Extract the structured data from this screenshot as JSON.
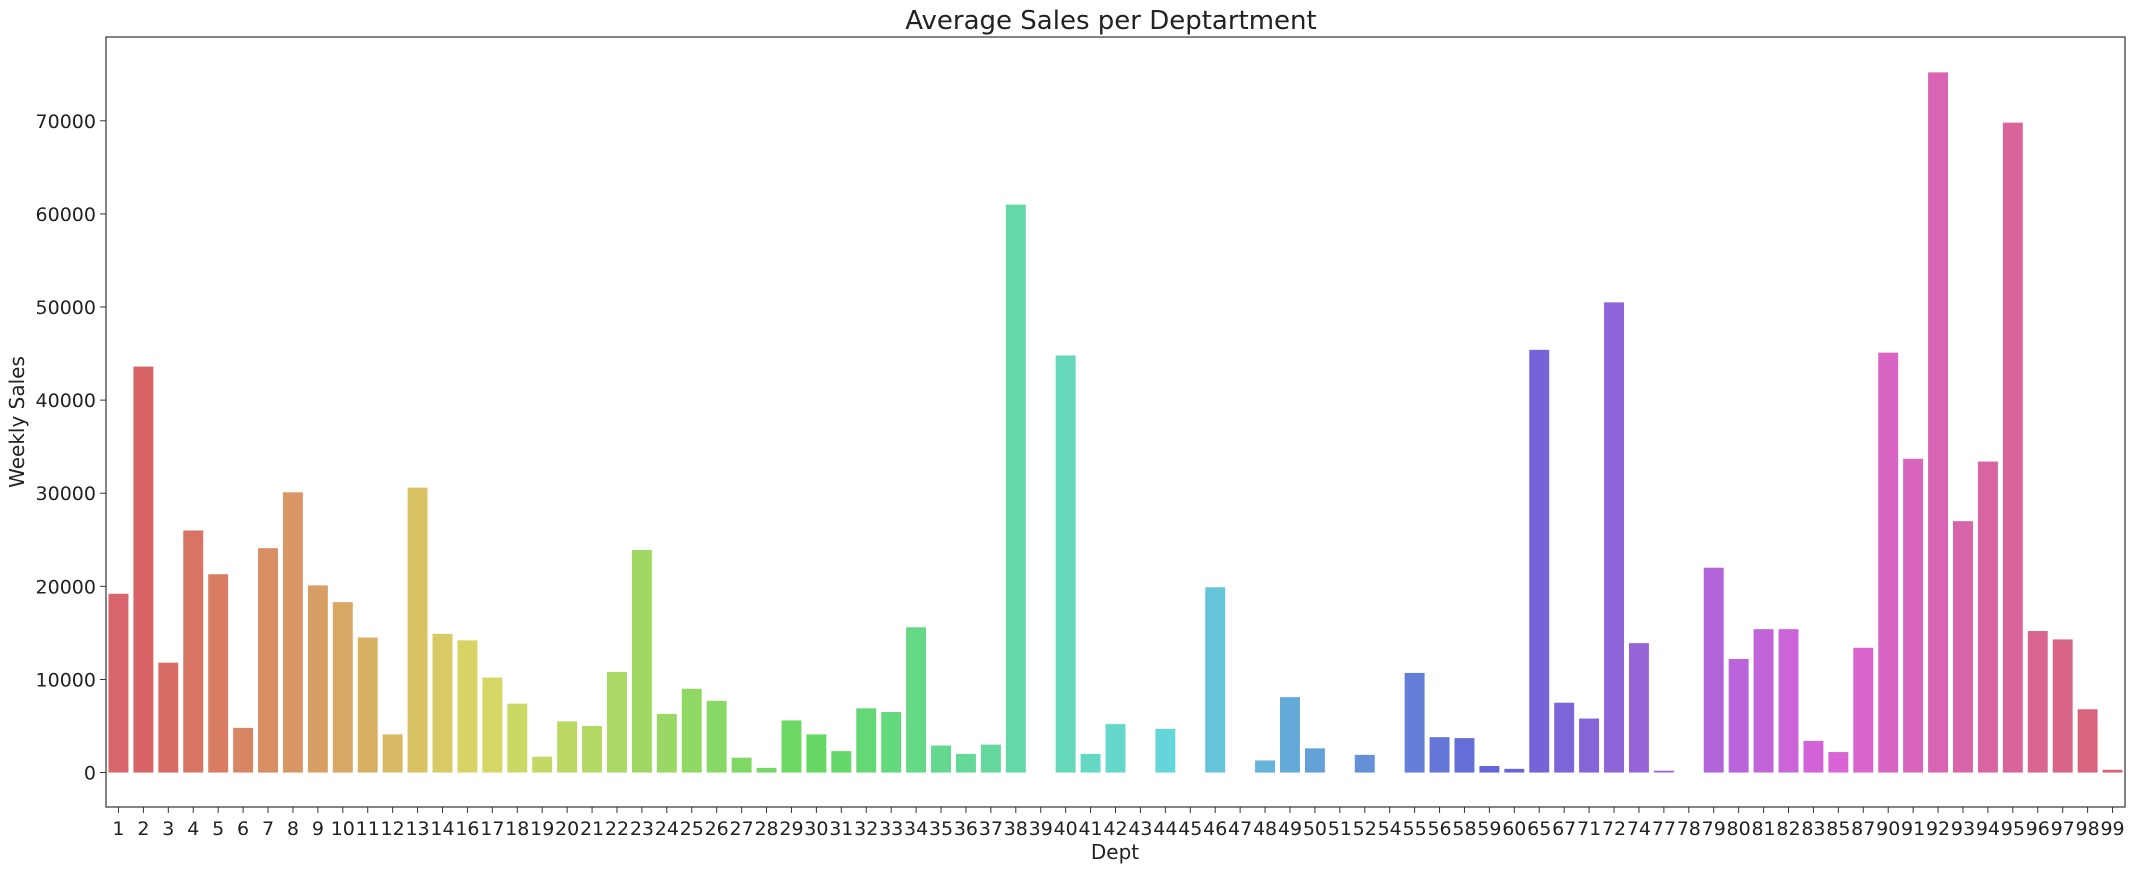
{
  "chart_data": {
    "type": "bar",
    "title": "Average Sales per Deptartment",
    "xlabel": "Dept",
    "ylabel": "Weekly Sales",
    "ylim": [
      -3700,
      79000
    ],
    "yticks": [
      0,
      10000,
      20000,
      30000,
      40000,
      50000,
      60000,
      70000
    ],
    "grid": false,
    "legend": "none",
    "categories": [
      "1",
      "2",
      "3",
      "4",
      "5",
      "6",
      "7",
      "8",
      "9",
      "10",
      "11",
      "12",
      "13",
      "14",
      "16",
      "17",
      "18",
      "19",
      "20",
      "21",
      "22",
      "23",
      "24",
      "25",
      "26",
      "27",
      "28",
      "29",
      "30",
      "31",
      "32",
      "33",
      "34",
      "35",
      "36",
      "37",
      "38",
      "39",
      "40",
      "41",
      "42",
      "43",
      "44",
      "45",
      "46",
      "47",
      "48",
      "49",
      "50",
      "51",
      "52",
      "54",
      "55",
      "56",
      "58",
      "59",
      "60",
      "65",
      "67",
      "71",
      "72",
      "74",
      "77",
      "78",
      "79",
      "80",
      "81",
      "82",
      "83",
      "85",
      "87",
      "90",
      "91",
      "92",
      "93",
      "94",
      "95",
      "96",
      "97",
      "98",
      "99"
    ],
    "values": [
      19200,
      43600,
      11800,
      26000,
      21300,
      4800,
      24100,
      30100,
      20100,
      18300,
      14500,
      4100,
      30600,
      14900,
      14200,
      10200,
      7400,
      1700,
      5500,
      5000,
      10800,
      23900,
      6300,
      9000,
      7700,
      1600,
      500,
      5600,
      4100,
      2300,
      6900,
      6500,
      15600,
      2900,
      2000,
      3000,
      61000,
      0,
      44800,
      2000,
      5200,
      0,
      4700,
      0,
      19900,
      0,
      1300,
      8100,
      2600,
      0,
      1900,
      0,
      10700,
      3800,
      3700,
      700,
      400,
      45400,
      7500,
      5800,
      50500,
      13900,
      200,
      0,
      22000,
      12200,
      15400,
      15400,
      3400,
      2200,
      13400,
      45100,
      33700,
      75200,
      27000,
      33400,
      69800,
      15200,
      14300,
      6800,
      300
    ]
  }
}
